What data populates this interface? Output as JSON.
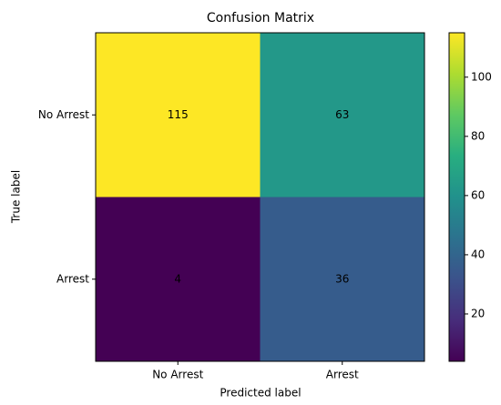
{
  "chart_data": {
    "type": "heatmap",
    "title": "Confusion Matrix",
    "x_label": "Predicted label",
    "y_label": "True label",
    "x_categories": [
      "No Arrest",
      "Arrest"
    ],
    "y_categories": [
      "No Arrest",
      "Arrest"
    ],
    "values": [
      [
        115,
        63
      ],
      [
        4,
        36
      ]
    ],
    "colormap": "viridis",
    "clim": [
      4,
      115
    ],
    "cticks": [
      20,
      40,
      60,
      80,
      100
    ]
  }
}
